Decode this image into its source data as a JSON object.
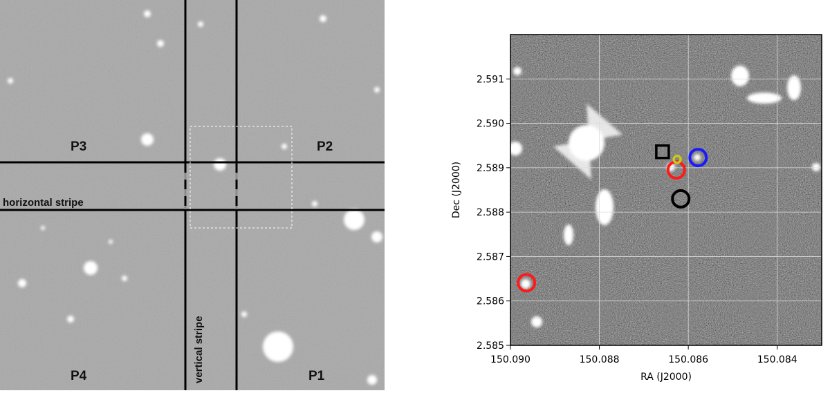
{
  "left_panel": {
    "labels": [
      "P3",
      "P2",
      "P4",
      "P1",
      "horizontal stripe",
      "vertical stripe"
    ]
  },
  "chart_data": {
    "type": "scatter",
    "x_label": "RA (J2000)",
    "y_label": "Dec (J2000)",
    "xlim": [
      150.09,
      150.083
    ],
    "ylim": [
      2.585,
      2.592
    ],
    "xticks": [
      {
        "value": 150.09,
        "label": "150.090"
      },
      150.088,
      150.086,
      150.084
    ],
    "yticks": [
      2.585,
      2.586,
      2.587,
      2.588,
      2.589,
      {
        "value": 2.59,
        "label": "2.590"
      },
      2.591
    ],
    "grid": true,
    "series": [
      {
        "color": "#ff1a1a",
        "marker": "circle",
        "x": [
          150.08627,
          150.08964
        ],
        "values": [
          2.58895,
          2.58641
        ]
      },
      {
        "color": "#c8c81e",
        "marker": "small-circle",
        "x": [
          150.08625
        ],
        "values": [
          2.58919
        ]
      },
      {
        "color": "#1a1aff",
        "marker": "circle",
        "x": [
          150.08578
        ],
        "values": [
          2.58923
        ]
      },
      {
        "color": "#000000",
        "marker": "square",
        "x": [
          150.08658
        ],
        "values": [
          2.58936
        ]
      },
      {
        "color": "#000000",
        "marker": "circle",
        "x": [
          150.08617
        ],
        "values": [
          2.5883
        ]
      }
    ]
  }
}
